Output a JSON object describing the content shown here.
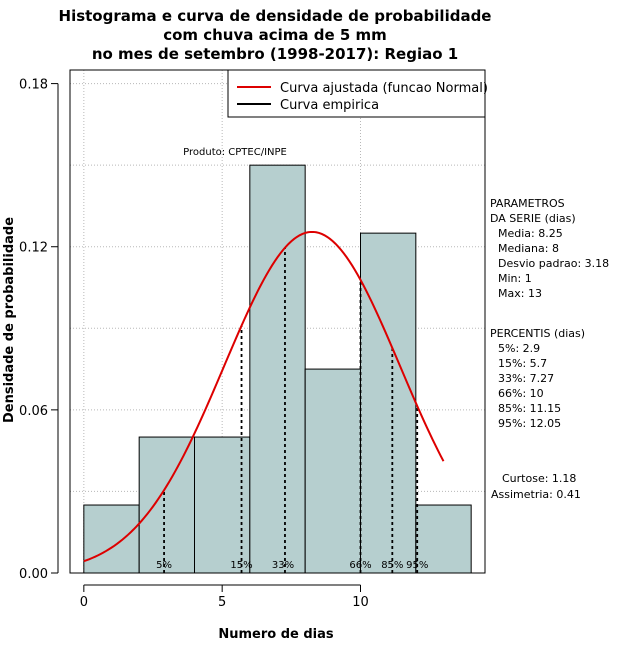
{
  "chart_data": {
    "type": "bar",
    "title_lines": [
      "Histograma e curva de densidade de probabilidade",
      "com chuva acima de 5 mm",
      "no mes de setembro (1998-2017): Regiao 1"
    ],
    "xlabel": "Numero de dias",
    "ylabel": "Densidade de probabilidade",
    "xlim": [
      -0.5,
      14.5
    ],
    "ylim": [
      0,
      0.185
    ],
    "x_ticks": [
      0,
      5,
      10
    ],
    "y_ticks": [
      0.0,
      0.06,
      0.12,
      0.18
    ],
    "y_tick_labels": [
      "0.00",
      "0.06",
      "0.12",
      "0.18"
    ],
    "grid": true,
    "bins": [
      {
        "start": 0,
        "end": 2,
        "density": 0.025
      },
      {
        "start": 2,
        "end": 4,
        "density": 0.05
      },
      {
        "start": 4,
        "end": 6,
        "density": 0.05
      },
      {
        "start": 6,
        "end": 8,
        "density": 0.15
      },
      {
        "start": 8,
        "end": 10,
        "density": 0.075
      },
      {
        "start": 10,
        "end": 12,
        "density": 0.125
      },
      {
        "start": 12,
        "end": 14,
        "density": 0.025
      }
    ],
    "fitted_curve": {
      "mean": 8.25,
      "sd": 3.18,
      "x_from": 0,
      "x_to": 13,
      "color": "#dd0000"
    },
    "percentile_lines": [
      {
        "label": "5%",
        "x": 2.9
      },
      {
        "label": "15%",
        "x": 5.7
      },
      {
        "label": "33%",
        "x": 7.27
      },
      {
        "label": "66%",
        "x": 10
      },
      {
        "label": "85%",
        "x": 11.15
      },
      {
        "label": "95%",
        "x": 12.05
      }
    ],
    "legend": {
      "position": "top-right",
      "entries": [
        {
          "label": "Curva ajustada (funcao Normal)",
          "color": "#dd0000"
        },
        {
          "label": "Curva empirica",
          "color": "#000000"
        }
      ]
    },
    "annotation": "Produto: CPTEC/INPE",
    "bar_color": "#b6cfcf",
    "parametros": {
      "heading": [
        "PARAMETROS",
        "DA SERIE (dias)"
      ],
      "lines": [
        "Media: 8.25",
        "Mediana: 8",
        "Desvio padrao: 3.18",
        "Min: 1",
        "Max: 13"
      ]
    },
    "percentis": {
      "heading": "PERCENTIS (dias)",
      "lines": [
        "5%: 2.9",
        "15%: 5.7",
        "33%: 7.27",
        "66%: 10",
        "85%: 11.15",
        "95%: 12.05"
      ]
    },
    "stats": {
      "lines": [
        "Curtose: 1.18",
        "Assimetria: 0.41"
      ]
    }
  }
}
